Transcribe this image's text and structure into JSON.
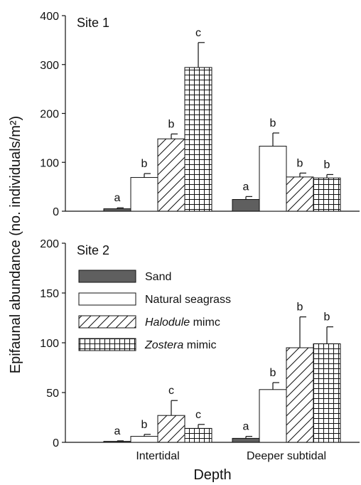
{
  "chart_data": [
    {
      "type": "bar",
      "title": "Site 1",
      "categories": [
        "Intertidal",
        "Deeper subtidal"
      ],
      "ylim": [
        0,
        400
      ],
      "yticks": [
        0,
        100,
        200,
        300,
        400
      ],
      "series": [
        {
          "name": "Sand",
          "values": [
            5,
            24
          ],
          "errors": [
            2,
            6
          ],
          "letters": [
            "a",
            "a"
          ]
        },
        {
          "name": "Natural seagrass",
          "values": [
            69,
            133
          ],
          "errors": [
            8,
            27
          ],
          "letters": [
            "b",
            "b"
          ]
        },
        {
          "name": "Halodule mimc",
          "values": [
            148,
            70
          ],
          "errors": [
            10,
            8
          ],
          "letters": [
            "b",
            "b"
          ]
        },
        {
          "name": "Zostera mimic",
          "values": [
            294,
            68
          ],
          "errors": [
            51,
            7
          ],
          "letters": [
            "c",
            "b"
          ]
        }
      ]
    },
    {
      "type": "bar",
      "title": "Site 2",
      "categories": [
        "Intertidal",
        "Deeper subtidal"
      ],
      "ylim": [
        0,
        200
      ],
      "yticks": [
        0,
        50,
        100,
        150,
        200
      ],
      "series": [
        {
          "name": "Sand",
          "values": [
            1,
            4
          ],
          "errors": [
            0.5,
            2
          ],
          "letters": [
            "a",
            "a"
          ]
        },
        {
          "name": "Natural seagrass",
          "values": [
            6,
            53
          ],
          "errors": [
            2,
            7
          ],
          "letters": [
            "b",
            "b"
          ]
        },
        {
          "name": "Halodule mimc",
          "values": [
            27,
            95
          ],
          "errors": [
            15,
            31
          ],
          "letters": [
            "c",
            "b"
          ]
        },
        {
          "name": "Zostera mimic",
          "values": [
            14,
            99
          ],
          "errors": [
            4,
            17
          ],
          "letters": [
            "c",
            "b"
          ]
        }
      ]
    }
  ],
  "axes": {
    "ylabel": "Epifaunal abundance (no. individuals/m²)",
    "xlabel": "Depth"
  },
  "legend": [
    {
      "pattern": "sand",
      "prefix": "",
      "italic": "",
      "suffix": "Sand"
    },
    {
      "pattern": "natural",
      "prefix": "",
      "italic": "",
      "suffix": "Natural seagrass"
    },
    {
      "pattern": "halodule",
      "prefix": "",
      "italic": "Halodule",
      "suffix": " mimc"
    },
    {
      "pattern": "zostera",
      "prefix": "",
      "italic": "Zostera",
      "suffix": " mimic"
    }
  ],
  "colors": {
    "sand": "#5f5f5f",
    "ink": "#111111",
    "paper": "#ffffff"
  }
}
